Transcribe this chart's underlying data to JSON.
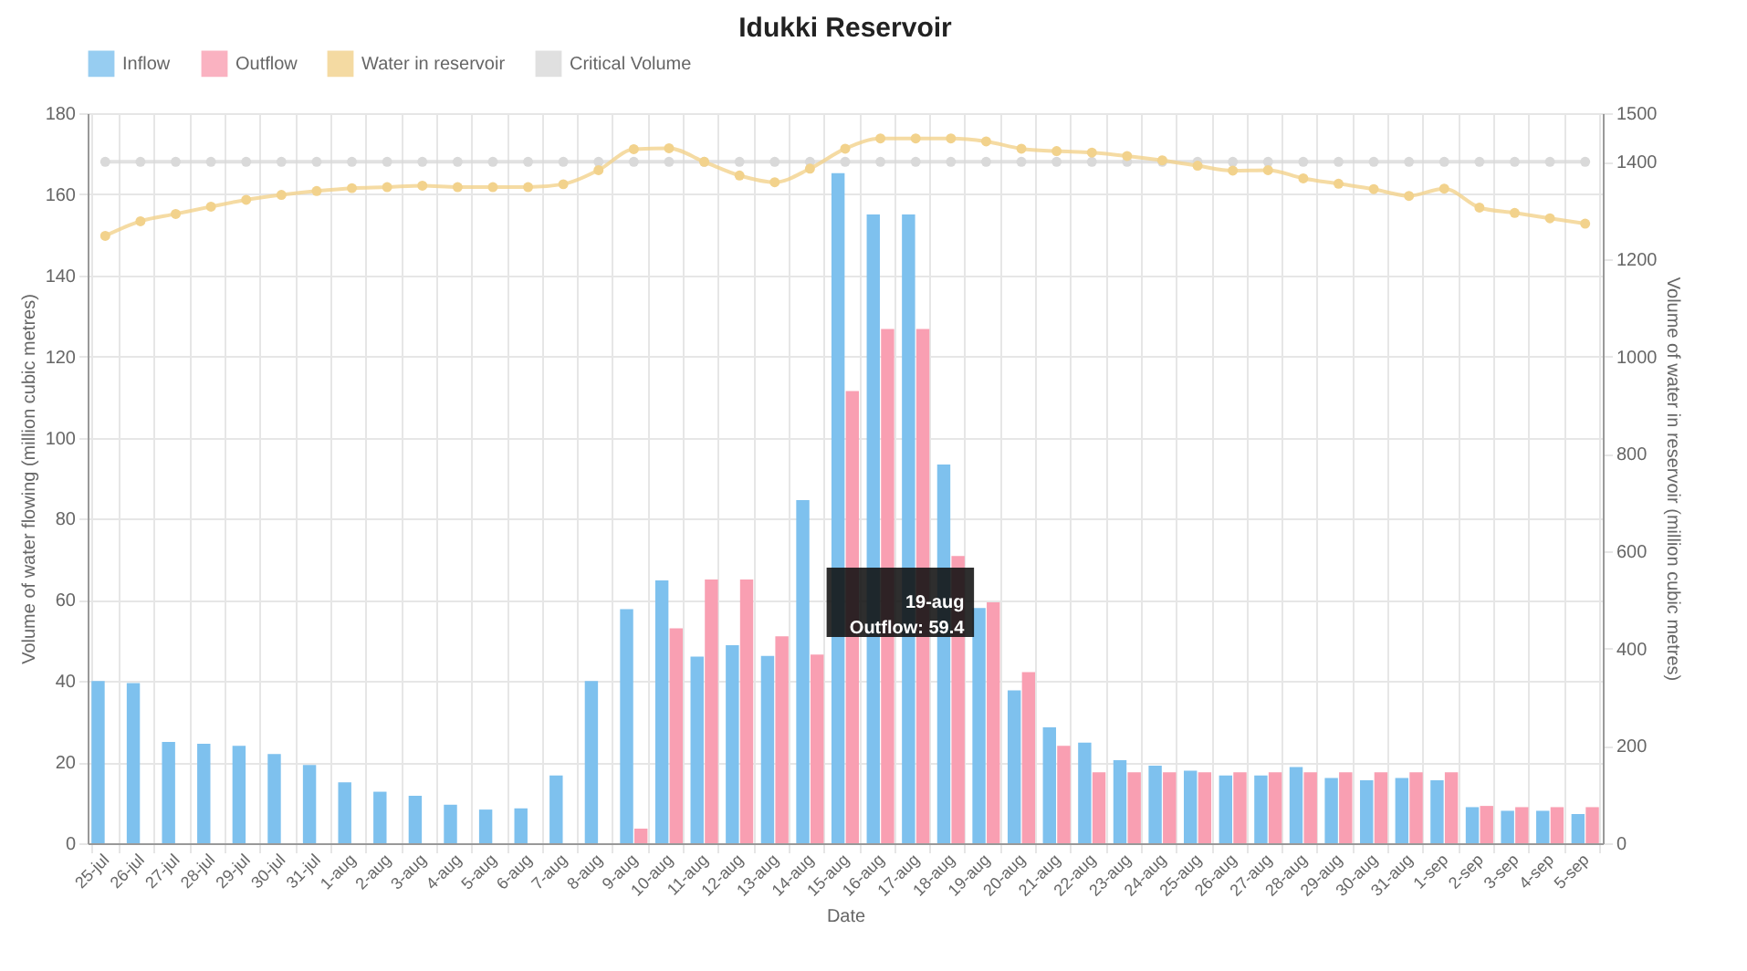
{
  "chart_data": {
    "type": "bar",
    "title": "Idukki Reservoir",
    "xlabel": "Date",
    "ylabel": "Volume of water flowing (million cubic metres)",
    "y2label": "Volume of water in reservoir (million cubic metres)",
    "categories": [
      "25-jul",
      "26-jul",
      "27-jul",
      "28-jul",
      "29-jul",
      "30-jul",
      "31-jul",
      "1-aug",
      "2-aug",
      "3-aug",
      "4-aug",
      "5-aug",
      "6-aug",
      "7-aug",
      "8-aug",
      "9-aug",
      "10-aug",
      "11-aug",
      "12-aug",
      "13-aug",
      "14-aug",
      "15-aug",
      "16-aug",
      "17-aug",
      "18-aug",
      "19-aug",
      "20-aug",
      "21-aug",
      "22-aug",
      "23-aug",
      "24-aug",
      "25-aug",
      "26-aug",
      "27-aug",
      "28-aug",
      "29-aug",
      "30-aug",
      "31-aug",
      "1-sep",
      "2-sep",
      "3-sep",
      "4-sep",
      "5-sep"
    ],
    "series": [
      {
        "name": "Inflow",
        "color": "#7ec1ee",
        "values": [
          40,
          39.5,
          25,
          24.5,
          24,
          22,
          19.3,
          15,
          12.7,
          11.7,
          9.5,
          8.3,
          8.6,
          16.7,
          40,
          57.7,
          64.8,
          46,
          48.8,
          46.2,
          84.6,
          165.2,
          155,
          155,
          93.4,
          58,
          37.7,
          28.6,
          24.8,
          20.5,
          19.1,
          17.9,
          16.7,
          16.7,
          18.8,
          16.1,
          15.5,
          16.1,
          15.5,
          8.9,
          8,
          8,
          7.2
        ]
      },
      {
        "name": "Outflow",
        "color": "#f99fb2",
        "values": [
          0,
          0,
          0,
          0,
          0,
          0,
          0,
          0,
          0,
          0,
          0,
          0,
          0,
          0,
          0,
          3.6,
          53,
          65,
          65,
          51,
          46.5,
          111.5,
          126.8,
          126.8,
          70.8,
          59.4,
          42.2,
          24,
          17.5,
          17.5,
          17.5,
          17.5,
          17.5,
          17.5,
          17.5,
          17.5,
          17.5,
          17.5,
          17.5,
          9.2,
          8.9,
          8.9,
          8.9
        ]
      },
      {
        "name": "Water in reservoir",
        "type": "line",
        "axis": "y2",
        "color": "#f2d28c",
        "values": [
          1248,
          1278,
          1293,
          1308,
          1322,
          1332,
          1340,
          1346,
          1348,
          1351,
          1348,
          1348,
          1348,
          1354,
          1383,
          1426,
          1428,
          1400,
          1372,
          1358,
          1386,
          1427,
          1448,
          1448,
          1448,
          1442,
          1427,
          1422,
          1419,
          1412,
          1403,
          1392,
          1382,
          1383,
          1366,
          1355,
          1344,
          1330,
          1345,
          1306,
          1295,
          1284,
          1273
        ]
      },
      {
        "name": "Critical Volume",
        "type": "line",
        "axis": "y2",
        "color": "#d9d9d9",
        "values": [
          1400,
          1400,
          1400,
          1400,
          1400,
          1400,
          1400,
          1400,
          1400,
          1400,
          1400,
          1400,
          1400,
          1400,
          1400,
          1400,
          1400,
          1400,
          1400,
          1400,
          1400,
          1400,
          1400,
          1400,
          1400,
          1400,
          1400,
          1400,
          1400,
          1400,
          1400,
          1400,
          1400,
          1400,
          1400,
          1400,
          1400,
          1400,
          1400,
          1400,
          1400,
          1400,
          1400
        ]
      }
    ],
    "ylim": [
      0,
      180
    ],
    "yticks": [
      0,
      20,
      40,
      60,
      80,
      100,
      120,
      140,
      160,
      180
    ],
    "y2lim": [
      0,
      1500
    ],
    "y2ticks": [
      0,
      200,
      400,
      600,
      800,
      1000,
      1200,
      1400,
      1500
    ],
    "annotations": [
      {
        "text": "19-aug\nOutflow: 59.4",
        "x": "19-aug",
        "y": 59.4
      }
    ],
    "grid": true,
    "legend": "top",
    "marker": "circle",
    "line_style": "solid"
  }
}
